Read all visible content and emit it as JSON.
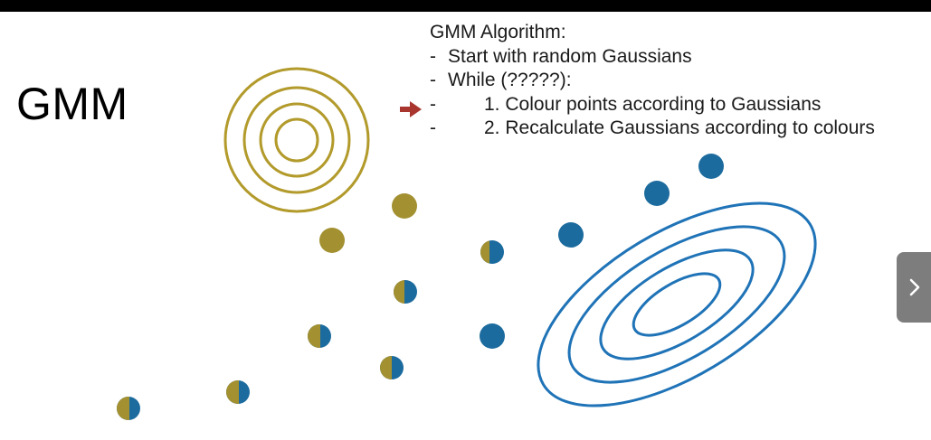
{
  "slide": {
    "title": "GMM"
  },
  "algorithm": {
    "heading": "GMM Algorithm:",
    "bullet_marker": "-",
    "steps": [
      "Start with random Gaussians",
      "While (?????):",
      "1. Colour points according to Gaussians",
      "2. Recalculate Gaussians according to colours"
    ],
    "current_step": 3
  },
  "colors": {
    "gaussian_1": "#b29a2b",
    "gaussian_2": "#1f73b7",
    "point_yellow": "#a39031",
    "point_blue": "#1c6b9e",
    "arrow": "#a8362f",
    "nav_button": "#7d7d7d"
  },
  "navigation": {
    "next_icon": "chevron-right-icon"
  }
}
